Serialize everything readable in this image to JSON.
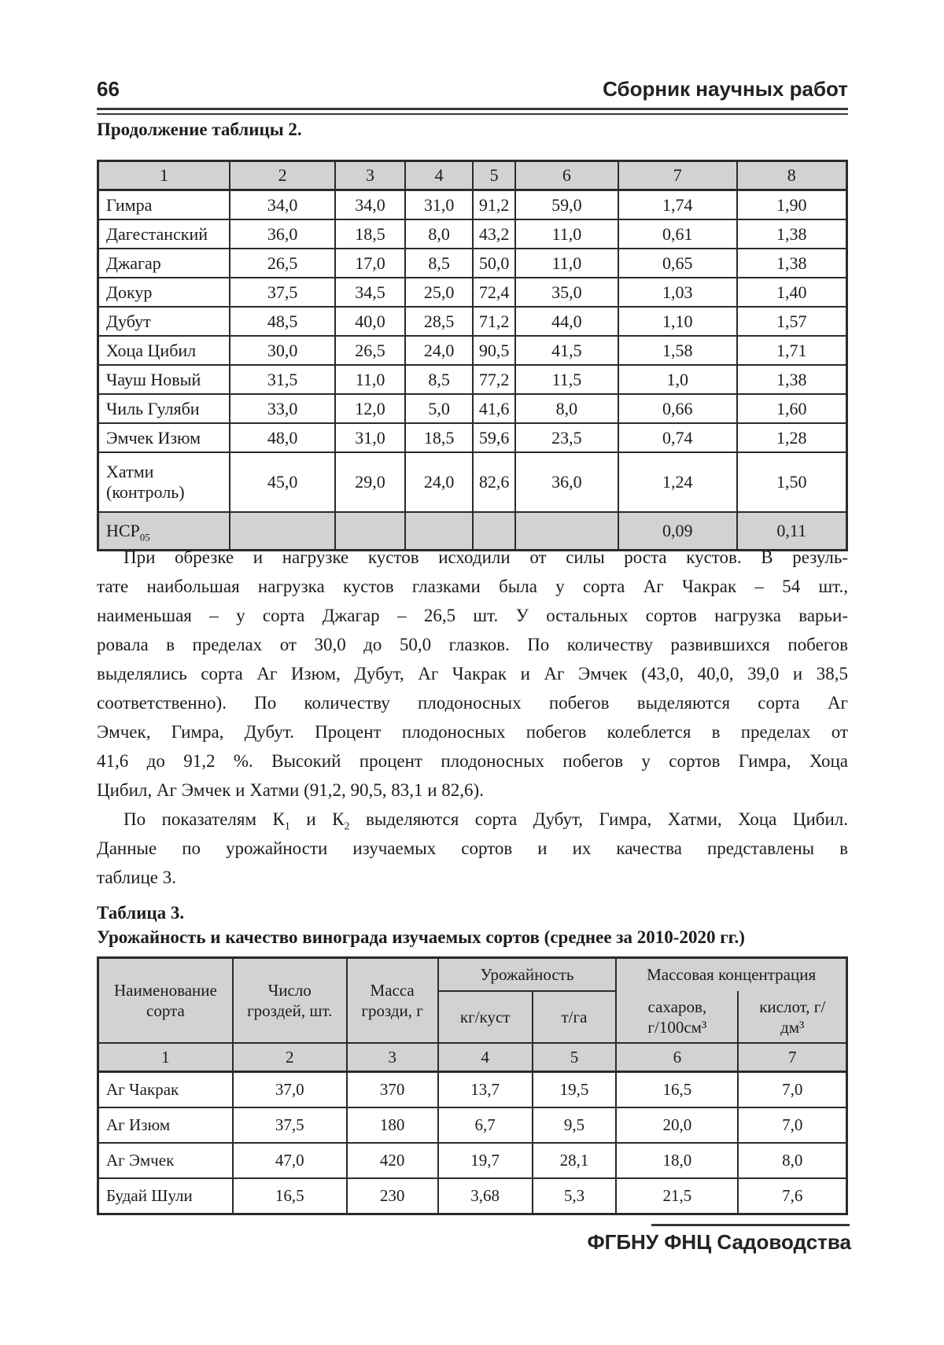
{
  "page_header": {
    "page_number": "66",
    "running_title": "Сборник научных работ"
  },
  "table2": {
    "caption": "Продолжение таблицы 2.",
    "column_numbers": [
      "1",
      "2",
      "3",
      "4",
      "5",
      "6",
      "7",
      "8"
    ],
    "rows": [
      {
        "name": "Гимра",
        "values": [
          "34,0",
          "34,0",
          "31,0",
          "91,2",
          "59,0",
          "1,74",
          "1,90"
        ]
      },
      {
        "name": "Дагестанский",
        "values": [
          "36,0",
          "18,5",
          "8,0",
          "43,2",
          "11,0",
          "0,61",
          "1,38"
        ]
      },
      {
        "name": "Джагар",
        "values": [
          "26,5",
          "17,0",
          "8,5",
          "50,0",
          "11,0",
          "0,65",
          "1,38"
        ]
      },
      {
        "name": "Докур",
        "values": [
          "37,5",
          "34,5",
          "25,0",
          "72,4",
          "35,0",
          "1,03",
          "1,40"
        ]
      },
      {
        "name": "Дубут",
        "values": [
          "48,5",
          "40,0",
          "28,5",
          "71,2",
          "44,0",
          "1,10",
          "1,57"
        ]
      },
      {
        "name": "Хоца Цибил",
        "values": [
          "30,0",
          "26,5",
          "24,0",
          "90,5",
          "41,5",
          "1,58",
          "1,71"
        ]
      },
      {
        "name": "Чауш Новый",
        "values": [
          "31,5",
          "11,0",
          "8,5",
          "77,2",
          "11,5",
          "1,0",
          "1,38"
        ]
      },
      {
        "name": "Чиль Гуляби",
        "values": [
          "33,0",
          "12,0",
          "5,0",
          "41,6",
          "8,0",
          "0,66",
          "1,60"
        ]
      },
      {
        "name": "Эмчек Изюм",
        "values": [
          "48,0",
          "31,0",
          "18,5",
          "59,6",
          "23,5",
          "0,74",
          "1,28"
        ]
      },
      {
        "name": "Хатми (контроль)",
        "values": [
          "45,0",
          "29,0",
          "24,0",
          "82,6",
          "36,0",
          "1,24",
          "1,50"
        ],
        "tall": true
      }
    ],
    "nsr_row": {
      "label": "НСР",
      "label_sub": "05",
      "values": [
        "",
        "",
        "",
        "",
        "",
        "0,09",
        "0,11"
      ]
    }
  },
  "body_text": {
    "lines": [
      {
        "indent": true,
        "justify": true,
        "segs": [
          {
            "t": "При обрезке и нагрузке кустов исходили от силы роста кустов. В резуль-"
          }
        ]
      },
      {
        "indent": false,
        "justify": true,
        "segs": [
          {
            "t": "тате наибольшая нагрузка кустов глазками была у сорта Аг Чакрак – 54 шт.,"
          }
        ]
      },
      {
        "indent": false,
        "justify": true,
        "segs": [
          {
            "t": "наименьшая – у сорта Джагар – 26,5 шт. У остальных сортов нагрузка варьи-"
          }
        ]
      },
      {
        "indent": false,
        "justify": true,
        "segs": [
          {
            "t": "ровала в пределах от 30,0 до 50,0 глазков. По количеству развившихся побегов"
          }
        ]
      },
      {
        "indent": false,
        "justify": true,
        "segs": [
          {
            "t": "выделялись сорта Аг Изюм, Дубут, Аг Чакрак и Аг Эмчек (43,0, 40,0, 39,0 и 38,5"
          }
        ]
      },
      {
        "indent": false,
        "justify": true,
        "segs": [
          {
            "t": "соответственно). По количеству плодоносных побегов выделяются сорта Аг"
          }
        ]
      },
      {
        "indent": false,
        "justify": true,
        "segs": [
          {
            "t": "Эмчек, Гимра, Дубут. Процент плодоносных побегов колеблется в пределах от"
          }
        ]
      },
      {
        "indent": false,
        "justify": true,
        "segs": [
          {
            "t": "41,6 до 91,2 %. Высокий процент плодоносных побегов у сортов Гимра, Хоца"
          }
        ]
      },
      {
        "indent": false,
        "justify": false,
        "segs": [
          {
            "t": "Цибил, Аг Эмчек и Хатми (91,2, 90,5, 83,1 и 82,6)."
          }
        ]
      },
      {
        "indent": true,
        "justify": true,
        "segs": [
          {
            "t": "По показателям К"
          },
          {
            "t": "1",
            "sub": true
          },
          {
            "t": " и К"
          },
          {
            "t": "2",
            "sub": true
          },
          {
            "t": " выделяются сорта Дубут, Гимра, Хатми, Хоца Цибил."
          }
        ]
      },
      {
        "indent": false,
        "justify": true,
        "segs": [
          {
            "t": "Данные по урожайности изучаемых сортов и их качества представлены в"
          }
        ]
      },
      {
        "indent": false,
        "justify": false,
        "segs": [
          {
            "t": "таблице 3."
          }
        ]
      }
    ]
  },
  "table3": {
    "caption": "Таблица 3.",
    "subtitle": "Урожайность и качество винограда изучаемых сортов (среднее за 2010-2020 гг.)",
    "header": {
      "name_col": [
        "Наименование",
        "сорта"
      ],
      "clusters_col": [
        "Число",
        "гроздей, шт."
      ],
      "mass_col": [
        "Масса",
        "грозди, г"
      ],
      "yield_group": "Урожайность",
      "yield_sub": [
        "кг/куст",
        "т/га"
      ],
      "conc_group": "Массовая концентрация",
      "conc_sub": [
        [
          "сахаров,",
          "г/100см³"
        ],
        [
          "кислот, г/",
          "дм³"
        ]
      ]
    },
    "column_numbers": [
      "1",
      "2",
      "3",
      "4",
      "5",
      "6",
      "7"
    ],
    "rows": [
      {
        "name": "Аг Чакрак",
        "values": [
          "37,0",
          "370",
          "13,7",
          "19,5",
          "16,5",
          "7,0"
        ]
      },
      {
        "name": "Аг Изюм",
        "values": [
          "37,5",
          "180",
          "6,7",
          "9,5",
          "20,0",
          "7,0"
        ]
      },
      {
        "name": "Аг Эмчек",
        "values": [
          "47,0",
          "420",
          "19,7",
          "28,1",
          "18,0",
          "8,0"
        ]
      },
      {
        "name": "Будай Шули",
        "values": [
          "16,5",
          "230",
          "3,68",
          "5,3",
          "21,5",
          "7,6"
        ]
      }
    ]
  },
  "footer": {
    "text": "ФГБНУ ФНЦ Садоводства"
  }
}
